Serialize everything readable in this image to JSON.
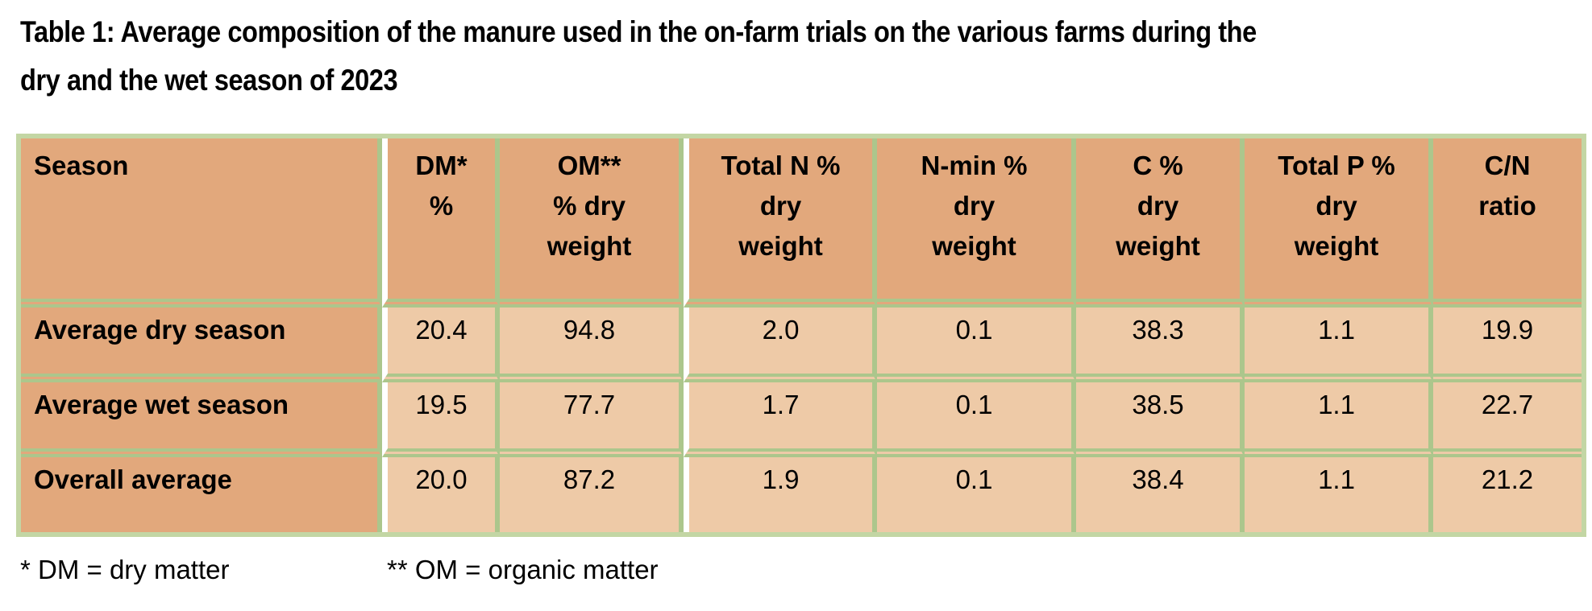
{
  "title": {
    "line1": "Table 1: Average composition of the manure used in the on-farm trials on the various farms during the",
    "line2": "dry and the wet season of 2023"
  },
  "table": {
    "columns": [
      {
        "id": "season",
        "lines": [
          "Season"
        ]
      },
      {
        "id": "dm",
        "lines": [
          "DM*",
          "%"
        ]
      },
      {
        "id": "om",
        "lines": [
          "OM**",
          "% dry",
          "weight"
        ]
      },
      {
        "id": "total-n",
        "lines": [
          "Total N %",
          "dry",
          "weight"
        ]
      },
      {
        "id": "n-min",
        "lines": [
          "N-min %",
          "dry",
          "weight"
        ]
      },
      {
        "id": "c",
        "lines": [
          "C %",
          "dry",
          "weight"
        ]
      },
      {
        "id": "total-p",
        "lines": [
          "Total P %",
          "dry",
          "weight"
        ]
      },
      {
        "id": "cn-ratio",
        "lines": [
          "C/N",
          "ratio"
        ]
      }
    ],
    "rows": [
      {
        "label": "Average dry season",
        "values": [
          "20.4",
          "94.8",
          "2.0",
          "0.1",
          "38.3",
          "1.1",
          "19.9"
        ]
      },
      {
        "label": "Average wet season",
        "values": [
          "19.5",
          "77.7",
          "1.7",
          "0.1",
          "38.5",
          "1.1",
          "22.7"
        ]
      },
      {
        "label": "Overall average",
        "values": [
          "20.0",
          "87.2",
          "1.9",
          "0.1",
          "38.4",
          "1.1",
          "21.2"
        ]
      }
    ]
  },
  "footnotes": {
    "dm": "* DM = dry matter",
    "om": "** OM = organic matter"
  },
  "colors": {
    "header_bg": "#e2a87c",
    "cell_bg": "#eecaa7",
    "border_green": "#acc68c",
    "outer_green": "#c3d6a4",
    "text_color": "#000000",
    "page_bg": "#ffffff"
  }
}
